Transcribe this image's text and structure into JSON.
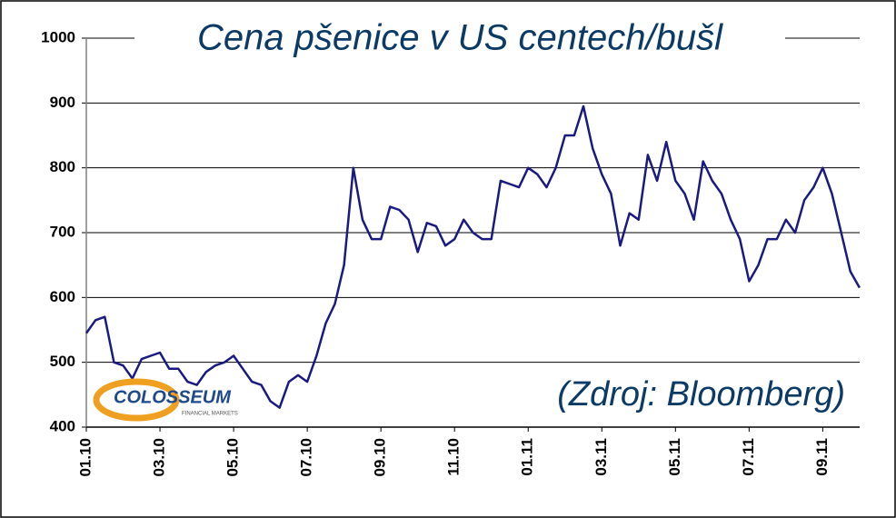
{
  "chart_data": {
    "type": "line",
    "title": "Cena  pšenice  v  US  centech/bušl",
    "annotations": [
      "(Zdroj: Bloomberg)"
    ],
    "categories": [
      "01.10",
      null,
      null,
      null,
      null,
      null,
      null,
      null,
      "03.10",
      null,
      null,
      null,
      null,
      null,
      null,
      null,
      "05.10",
      null,
      null,
      null,
      null,
      null,
      null,
      null,
      "07.10",
      null,
      null,
      null,
      null,
      null,
      null,
      null,
      "09.10",
      null,
      null,
      null,
      null,
      null,
      null,
      null,
      "11.10",
      null,
      null,
      null,
      null,
      null,
      null,
      null,
      "01.11",
      null,
      null,
      null,
      null,
      null,
      null,
      null,
      "03.11",
      null,
      null,
      null,
      null,
      null,
      null,
      null,
      "05.11",
      null,
      null,
      null,
      null,
      null,
      null,
      null,
      "07.11",
      null,
      null,
      null,
      null,
      null,
      null,
      null,
      "09.11",
      null,
      null,
      null,
      null
    ],
    "series": [
      {
        "name": "Cena pšenice",
        "color": "#1a1a80",
        "values": [
          545,
          565,
          570,
          500,
          495,
          475,
          505,
          510,
          515,
          490,
          490,
          470,
          465,
          485,
          495,
          500,
          510,
          490,
          470,
          465,
          440,
          430,
          470,
          480,
          470,
          510,
          560,
          590,
          650,
          800,
          720,
          690,
          690,
          740,
          735,
          720,
          670,
          715,
          710,
          680,
          690,
          720,
          700,
          690,
          690,
          780,
          775,
          770,
          800,
          790,
          770,
          800,
          850,
          850,
          895,
          830,
          790,
          760,
          680,
          730,
          720,
          820,
          780,
          840,
          780,
          760,
          720,
          810,
          780,
          760,
          720,
          690,
          625,
          650,
          690,
          690,
          720,
          700,
          750,
          770,
          800,
          760,
          700,
          640,
          615
        ]
      }
    ],
    "ylim": [
      400,
      1000
    ],
    "yticks": [
      400,
      500,
      600,
      700,
      800,
      900,
      1000
    ],
    "grid": true
  },
  "logo": {
    "name": "COLOSSEUM",
    "tagline": "FINANCIAL MARKETS"
  }
}
